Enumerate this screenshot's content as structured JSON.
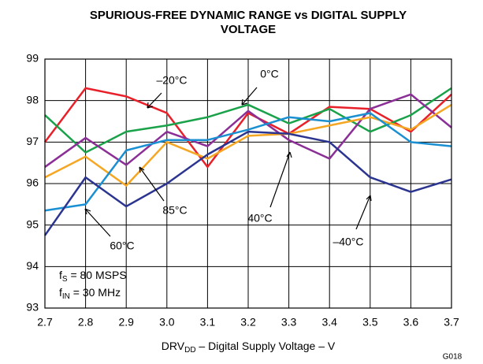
{
  "chart_data": {
    "type": "line",
    "title": [
      "SPURIOUS-FREE DYNAMIC RANGE vs DIGITAL SUPPLY",
      "VOLTAGE"
    ],
    "xlabel": [
      "DRV",
      "DD",
      " – Digital Supply Voltage – V"
    ],
    "x": [
      2.7,
      2.8,
      2.9,
      3.0,
      3.1,
      3.2,
      3.3,
      3.4,
      3.5,
      3.6,
      3.7
    ],
    "xlim": [
      2.7,
      3.7
    ],
    "xticks": [
      2.7,
      2.8,
      2.9,
      {
        "value": 3.0,
        "label": "3.0"
      },
      3.1,
      3.2,
      3.3,
      3.4,
      3.5,
      3.6,
      3.7
    ],
    "ylim": [
      93,
      99
    ],
    "yticks": [
      93,
      94,
      95,
      96,
      97,
      98,
      99
    ],
    "grid": true,
    "series": [
      {
        "name": "–20°C",
        "color": "#e8202a",
        "values": [
          97.0,
          98.3,
          98.1,
          97.7,
          96.4,
          97.7,
          97.2,
          97.85,
          97.8,
          97.25,
          98.15
        ]
      },
      {
        "name": "0°C",
        "color": "#1aa24a",
        "values": [
          97.65,
          96.75,
          97.25,
          97.4,
          97.6,
          97.9,
          97.45,
          97.8,
          97.25,
          97.65,
          98.3
        ]
      },
      {
        "name": "85°C",
        "color": "#8b2f97",
        "values": [
          96.4,
          97.1,
          96.45,
          97.25,
          96.9,
          97.75,
          97.05,
          96.6,
          97.8,
          98.15,
          97.35
        ]
      },
      {
        "name": "40°C",
        "color": "#f5a623",
        "values": [
          96.15,
          96.65,
          95.95,
          97.0,
          96.6,
          97.15,
          97.2,
          97.4,
          97.6,
          97.3,
          97.9
        ]
      },
      {
        "name": "60°C",
        "color": "#1a8fd1",
        "values": [
          95.35,
          95.5,
          96.8,
          97.05,
          97.05,
          97.3,
          97.6,
          97.5,
          97.7,
          97.0,
          96.9
        ]
      },
      {
        "name": "–40°C",
        "color": "#2b3590",
        "values": [
          94.75,
          96.15,
          95.45,
          96.0,
          96.7,
          97.25,
          97.2,
          97.0,
          96.15,
          95.8,
          96.1
        ]
      }
    ],
    "annotations": [
      [
        "f",
        "S",
        " = 80 MSPS"
      ],
      [
        "f",
        "IN",
        " = 30 MHz"
      ]
    ],
    "figure_id": "G018"
  }
}
